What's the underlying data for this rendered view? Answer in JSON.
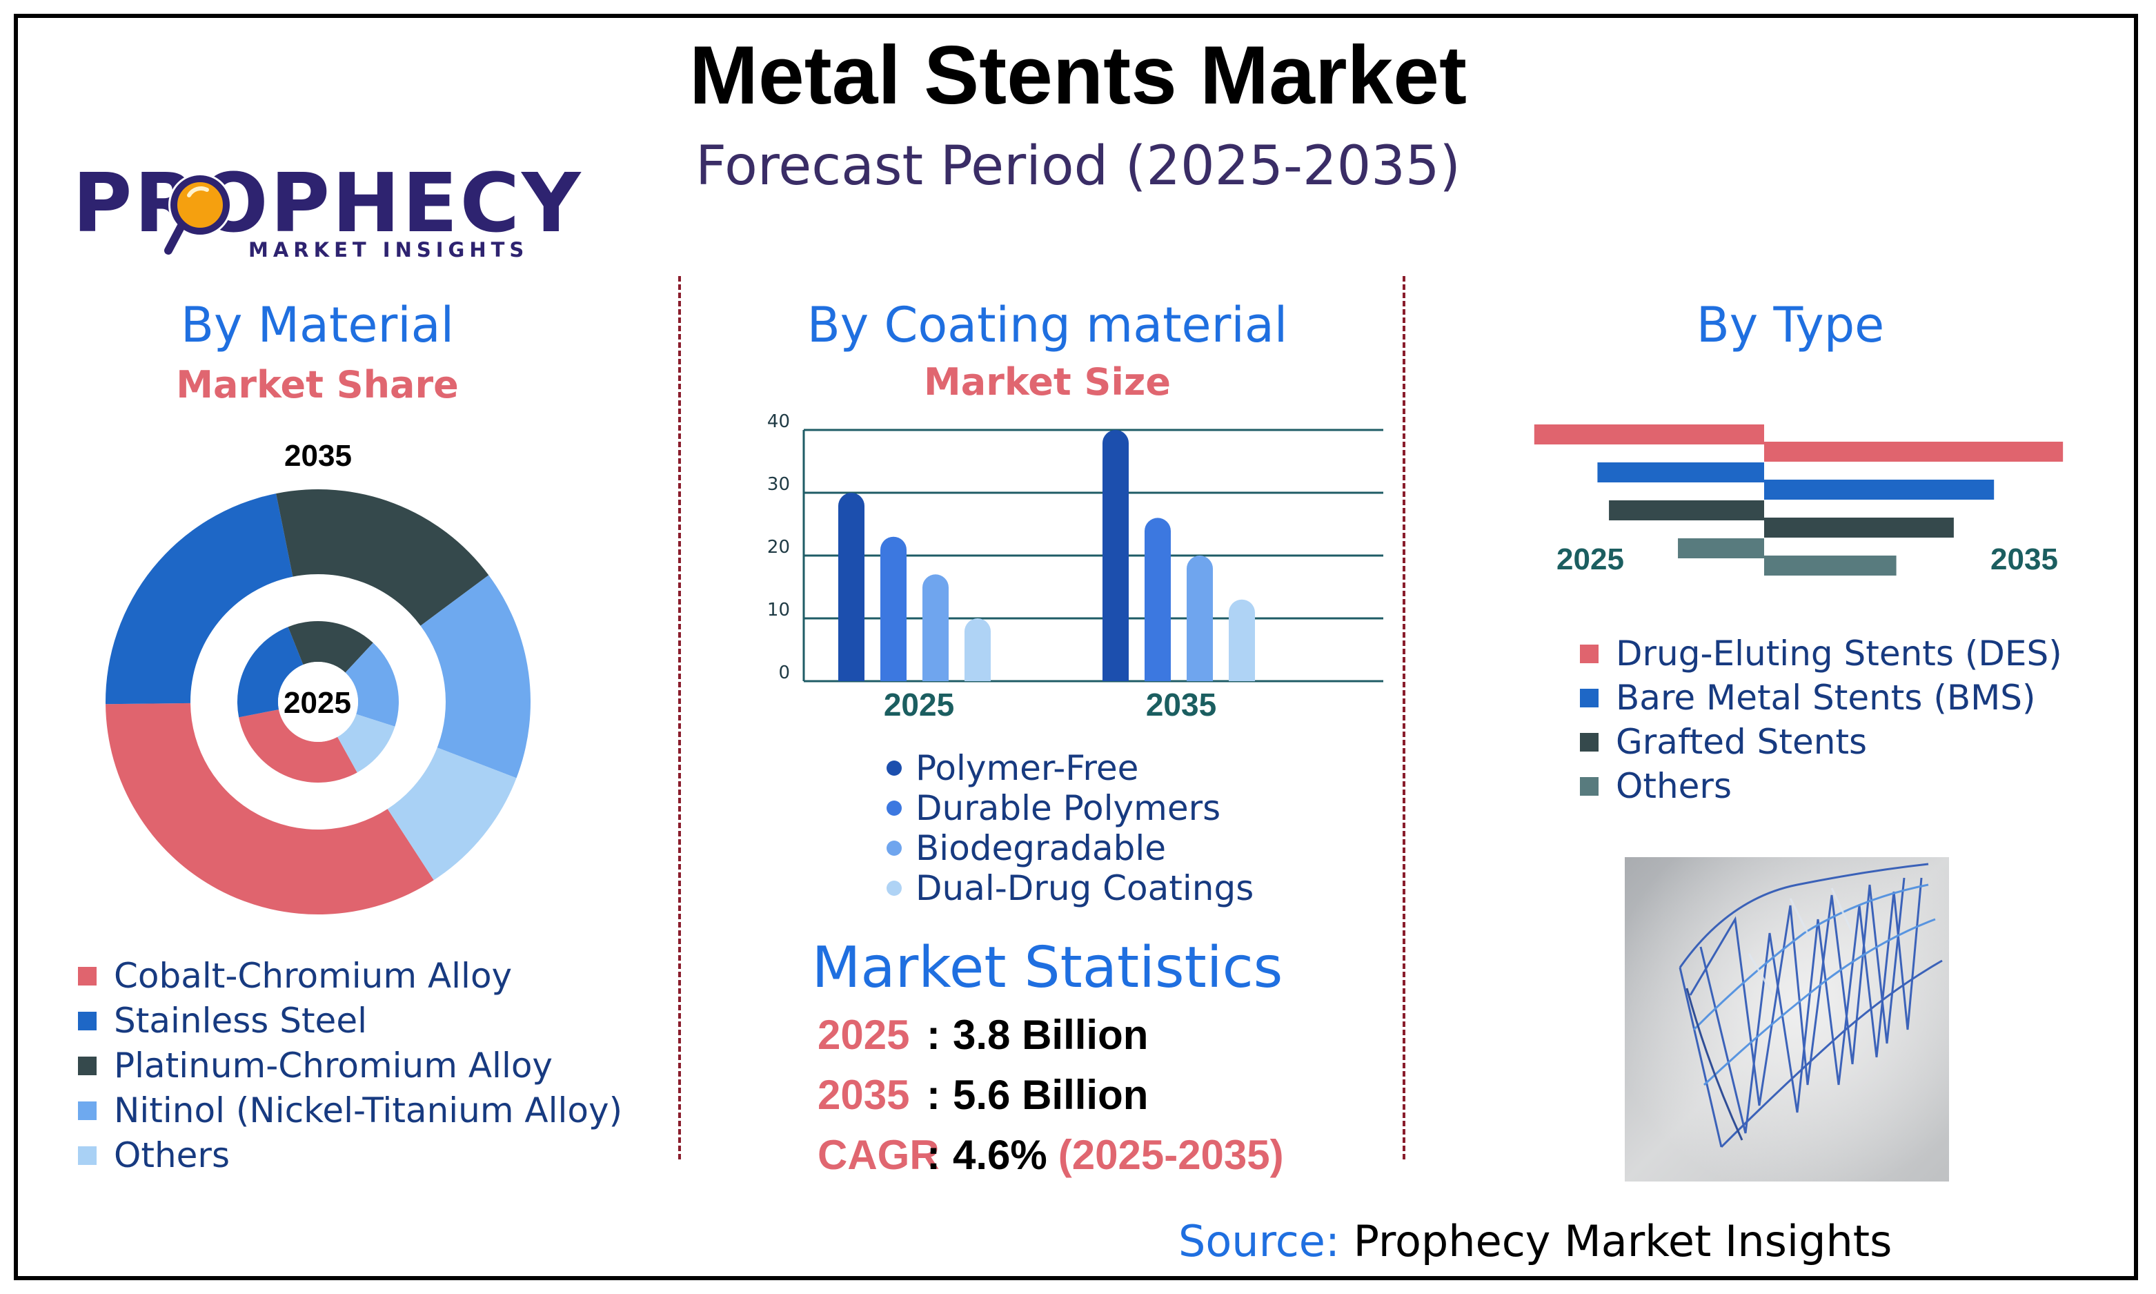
{
  "header": {
    "title": "Metal Stents Market",
    "subtitle": "Forecast Period (2025-2035)"
  },
  "logo": {
    "name": "PROPHECY",
    "tagline": "MARKET INSIGHTS"
  },
  "colors": {
    "title_blue": "#1f6fe0",
    "subtitle_red": "#e06670",
    "navy": "#2e2370"
  },
  "material": {
    "title": "By Material",
    "subtitle": "Market Share",
    "outer_label": "2035",
    "inner_label": "2025",
    "legend": [
      "Cobalt-Chromium Alloy",
      "Stainless Steel",
      "Platinum-Chromium Alloy",
      "Nitinol (Nickel-Titanium Alloy)",
      "Others"
    ],
    "colors": [
      "#e0646e",
      "#1e67c6",
      "#35494c",
      "#6ea9ef",
      "#a9d1f5"
    ]
  },
  "coating": {
    "title": "By Coating material",
    "subtitle": "Market Size",
    "legend": [
      "Polymer-Free",
      "Durable Polymers",
      "Biodegradable",
      "Dual-Drug Coatings"
    ],
    "colors": [
      "#1c4fae",
      "#3c78e0",
      "#6fa5ee",
      "#afd3f5"
    ]
  },
  "type": {
    "title": "By Type",
    "label_left": "2025",
    "label_right": "2035",
    "legend": [
      "Drug-Eluting Stents (DES)",
      "Bare Metal Stents (BMS)",
      "Grafted Stents",
      "Others"
    ],
    "colors": [
      "#e0646e",
      "#1e67c6",
      "#35494c",
      "#587b7e"
    ]
  },
  "stats": {
    "title": "Market Statistics",
    "rows": [
      {
        "label": "2025",
        "sep": ":",
        "value": "3.8 Billion",
        "extra": ""
      },
      {
        "label": "2035",
        "sep": ":",
        "value": "5.6 Billion",
        "extra": ""
      },
      {
        "label": "CAGR",
        "sep": ":",
        "value": "4.6%",
        "extra": "(2025-2035)"
      }
    ]
  },
  "source": {
    "label": "Source:",
    "text": "Prophecy Market Insights"
  },
  "chart_data": [
    {
      "type": "pie",
      "subtype": "nested-donut",
      "title": "By Material",
      "subtitle": "Market Share",
      "categories": [
        "Cobalt-Chromium Alloy",
        "Stainless Steel",
        "Platinum-Chromium Alloy",
        "Nitinol (Nickel-Titanium Alloy)",
        "Others"
      ],
      "series": [
        {
          "name": "2035",
          "values": [
            34,
            22,
            18,
            16,
            10
          ]
        },
        {
          "name": "2025",
          "values": [
            30,
            22,
            18,
            18,
            12
          ]
        }
      ]
    },
    {
      "type": "bar",
      "title": "By Coating material",
      "subtitle": "Market Size",
      "categories": [
        "2025",
        "2035"
      ],
      "series": [
        {
          "name": "Polymer-Free",
          "values": [
            30,
            40
          ]
        },
        {
          "name": "Durable Polymers",
          "values": [
            23,
            26
          ]
        },
        {
          "name": "Biodegradable",
          "values": [
            17,
            20
          ]
        },
        {
          "name": "Dual-Drug Coatings",
          "values": [
            10,
            13
          ]
        }
      ],
      "ylim": [
        0,
        40
      ],
      "yticks": [
        0,
        10,
        20,
        30,
        40
      ],
      "grid": true
    },
    {
      "type": "bar",
      "subtype": "diverging-horizontal",
      "title": "By Type",
      "categories": [
        "Drug-Eluting Stents (DES)",
        "Bare Metal Stents (BMS)",
        "Grafted Stents",
        "Others"
      ],
      "series": [
        {
          "name": "2025",
          "values": [
            40,
            29,
            27,
            15
          ]
        },
        {
          "name": "2035",
          "values": [
            52,
            40,
            33,
            23
          ]
        }
      ]
    }
  ]
}
